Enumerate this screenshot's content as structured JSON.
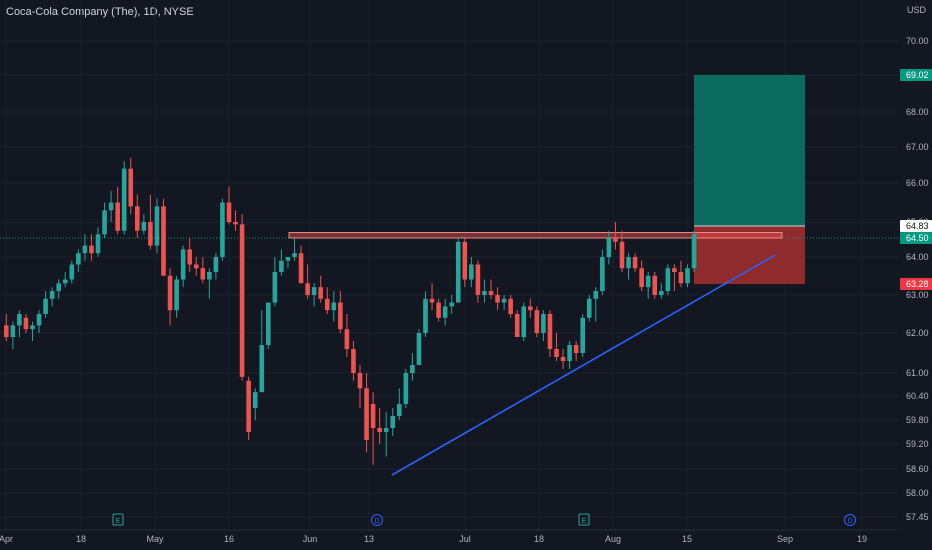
{
  "chart_data": {
    "type": "candlestick",
    "title": "Coca-Cola Company (The), 1D, NYSE",
    "currency": "USD",
    "colors": {
      "up": "#26a69a",
      "down": "#ef5350",
      "background": "#131722",
      "grid": "#1e222d",
      "trendline": "#2962ff"
    },
    "y_ticks": [
      70.0,
      69.02,
      68.0,
      67.0,
      66.0,
      65.0,
      64.83,
      64.5,
      64.0,
      63.28,
      63.0,
      62.0,
      61.0,
      60.4,
      59.8,
      59.2,
      58.6,
      58.0,
      57.45
    ],
    "y_labels": [
      "70.00",
      "69.02",
      "68.00",
      "67.00",
      "66.00",
      "65.00",
      "64.83",
      "64.50",
      "64.00",
      "63.28",
      "63.00",
      "62.00",
      "61.00",
      "60.40",
      "59.80",
      "59.20",
      "58.60",
      "58.00",
      "57.45"
    ],
    "x_ticks": [
      {
        "label": "Apr"
      },
      {
        "label": "18"
      },
      {
        "label": "May"
      },
      {
        "label": "16"
      },
      {
        "label": "Jun"
      },
      {
        "label": "13"
      },
      {
        "label": "Jul"
      },
      {
        "label": "18"
      },
      {
        "label": "Aug"
      },
      {
        "label": "15"
      },
      {
        "label": "Sep"
      },
      {
        "label": "19"
      }
    ],
    "price_badges": [
      {
        "value": "69.02",
        "color": "#089981"
      },
      {
        "value": "64.83",
        "color": "#ffffff"
      },
      {
        "value": "64.50",
        "color": "#089981"
      },
      {
        "value": "63.28",
        "color": "#f23645"
      }
    ],
    "event_markers": [
      {
        "label": "E"
      },
      {
        "label": "D"
      },
      {
        "label": "E"
      },
      {
        "label": "D"
      }
    ],
    "position": {
      "entry": 64.83,
      "target": 69.02,
      "stop": 63.28
    },
    "resistance_zone": [
      64.5,
      64.65
    ],
    "trendline": {
      "from": 58.45,
      "to": 64.05
    },
    "candles": [
      [
        62.2,
        62.5,
        61.8,
        61.9
      ],
      [
        61.9,
        62.3,
        61.6,
        62.2
      ],
      [
        62.2,
        62.6,
        61.9,
        62.5
      ],
      [
        62.4,
        62.5,
        62.0,
        62.1
      ],
      [
        62.1,
        62.3,
        61.8,
        62.2
      ],
      [
        62.2,
        62.6,
        62.0,
        62.5
      ],
      [
        62.5,
        63.1,
        62.4,
        62.9
      ],
      [
        62.9,
        63.2,
        62.7,
        63.1
      ],
      [
        63.1,
        63.4,
        62.9,
        63.3
      ],
      [
        63.3,
        63.6,
        63.2,
        63.4
      ],
      [
        63.4,
        63.9,
        63.3,
        63.8
      ],
      [
        63.8,
        64.2,
        63.6,
        64.1
      ],
      [
        64.1,
        64.6,
        63.9,
        64.3
      ],
      [
        64.3,
        64.6,
        63.9,
        64.1
      ],
      [
        64.1,
        64.8,
        64.0,
        64.6
      ],
      [
        64.6,
        65.5,
        64.5,
        65.3
      ],
      [
        65.3,
        65.8,
        65.0,
        65.5
      ],
      [
        65.5,
        65.9,
        64.6,
        64.7
      ],
      [
        64.7,
        66.6,
        64.6,
        66.4
      ],
      [
        66.4,
        66.7,
        65.2,
        65.4
      ],
      [
        65.4,
        65.7,
        64.5,
        64.7
      ],
      [
        64.7,
        65.2,
        64.6,
        65.0
      ],
      [
        65.0,
        65.7,
        64.2,
        64.3
      ],
      [
        64.3,
        65.6,
        64.1,
        65.4
      ],
      [
        65.4,
        65.6,
        63.5,
        63.5
      ],
      [
        63.5,
        63.7,
        62.2,
        62.6
      ],
      [
        62.6,
        63.5,
        62.4,
        63.4
      ],
      [
        63.4,
        64.3,
        63.2,
        64.2
      ],
      [
        64.2,
        64.5,
        63.6,
        63.8
      ],
      [
        63.8,
        64.0,
        63.5,
        63.7
      ],
      [
        63.7,
        64.0,
        63.3,
        63.4
      ],
      [
        63.4,
        63.7,
        62.9,
        63.6
      ],
      [
        63.6,
        64.1,
        63.4,
        64.0
      ],
      [
        64.0,
        65.6,
        63.9,
        65.5
      ],
      [
        65.5,
        65.9,
        64.9,
        65.0
      ],
      [
        65.0,
        65.3,
        64.7,
        64.9
      ],
      [
        64.9,
        65.2,
        60.8,
        60.9
      ],
      [
        60.8,
        60.9,
        59.3,
        59.5
      ],
      [
        60.1,
        60.6,
        59.8,
        60.5
      ],
      [
        60.5,
        62.6,
        60.5,
        61.7
      ],
      [
        61.7,
        62.8,
        61.6,
        62.8
      ],
      [
        62.8,
        64.0,
        62.7,
        63.6
      ],
      [
        63.6,
        64.2,
        63.5,
        63.9
      ],
      [
        63.9,
        64.0,
        63.7,
        64.0
      ],
      [
        64.0,
        64.5,
        63.9,
        64.1
      ],
      [
        64.1,
        64.3,
        63.3,
        63.3
      ],
      [
        63.3,
        63.8,
        62.9,
        63.0
      ],
      [
        63.0,
        63.3,
        62.7,
        63.2
      ],
      [
        63.2,
        63.5,
        62.8,
        62.9
      ],
      [
        62.9,
        63.2,
        62.5,
        62.6
      ],
      [
        62.6,
        63.1,
        62.3,
        62.8
      ],
      [
        62.8,
        63.1,
        62.0,
        62.1
      ],
      [
        62.1,
        62.5,
        61.4,
        61.6
      ],
      [
        61.6,
        61.8,
        60.8,
        61.0
      ],
      [
        61.0,
        61.2,
        60.1,
        60.6
      ],
      [
        60.6,
        61.0,
        59.0,
        59.3
      ],
      [
        60.2,
        60.5,
        58.7,
        59.6
      ],
      [
        59.6,
        60.1,
        59.2,
        59.5
      ],
      [
        59.5,
        60.0,
        58.9,
        59.6
      ],
      [
        59.6,
        60.1,
        59.4,
        59.9
      ],
      [
        59.9,
        60.6,
        59.8,
        60.2
      ],
      [
        60.2,
        61.1,
        60.1,
        61.0
      ],
      [
        61.0,
        61.5,
        60.8,
        61.2
      ],
      [
        61.2,
        62.1,
        61.2,
        62.0
      ],
      [
        62.0,
        63.1,
        61.9,
        62.9
      ],
      [
        62.9,
        63.3,
        62.6,
        62.8
      ],
      [
        62.8,
        62.9,
        62.3,
        62.4
      ],
      [
        62.4,
        62.9,
        62.2,
        62.7
      ],
      [
        62.7,
        63.0,
        62.5,
        62.8
      ],
      [
        62.8,
        64.5,
        62.8,
        64.4
      ],
      [
        64.4,
        64.5,
        63.2,
        63.4
      ],
      [
        63.4,
        64.0,
        63.2,
        63.8
      ],
      [
        63.8,
        63.9,
        62.8,
        63.0
      ],
      [
        63.0,
        63.4,
        62.8,
        63.1
      ],
      [
        63.1,
        63.4,
        62.9,
        63.0
      ],
      [
        63.0,
        63.2,
        62.6,
        62.8
      ],
      [
        62.8,
        63.0,
        62.6,
        62.9
      ],
      [
        62.9,
        63.0,
        62.4,
        62.5
      ],
      [
        62.5,
        62.6,
        61.9,
        61.9
      ],
      [
        61.9,
        62.8,
        61.8,
        62.7
      ],
      [
        62.7,
        62.9,
        62.4,
        62.6
      ],
      [
        62.6,
        62.7,
        61.9,
        62.0
      ],
      [
        62.0,
        62.6,
        61.8,
        62.5
      ],
      [
        62.5,
        62.6,
        61.4,
        61.6
      ],
      [
        61.6,
        62.0,
        61.3,
        61.4
      ],
      [
        61.4,
        61.6,
        61.1,
        61.3
      ],
      [
        61.3,
        61.8,
        61.1,
        61.7
      ],
      [
        61.7,
        61.8,
        61.3,
        61.5
      ],
      [
        61.5,
        62.5,
        61.4,
        62.4
      ],
      [
        62.4,
        63.0,
        62.3,
        62.9
      ],
      [
        62.9,
        63.2,
        62.3,
        63.1
      ],
      [
        63.1,
        64.2,
        63.0,
        64.0
      ],
      [
        64.0,
        64.7,
        63.8,
        64.5
      ],
      [
        64.5,
        65.0,
        64.2,
        64.4
      ],
      [
        64.4,
        64.7,
        63.6,
        63.7
      ],
      [
        63.7,
        64.1,
        63.4,
        64.0
      ],
      [
        64.0,
        64.1,
        63.6,
        63.7
      ],
      [
        63.7,
        63.9,
        63.1,
        63.2
      ],
      [
        63.2,
        63.6,
        62.9,
        63.5
      ],
      [
        63.5,
        63.6,
        62.9,
        63.0
      ],
      [
        63.0,
        63.3,
        62.9,
        63.1
      ],
      [
        63.1,
        63.8,
        63.0,
        63.7
      ],
      [
        63.7,
        63.8,
        63.1,
        63.6
      ],
      [
        63.6,
        63.9,
        63.2,
        63.3
      ],
      [
        63.3,
        63.8,
        63.2,
        63.7
      ],
      [
        63.7,
        64.7,
        63.6,
        64.6
      ]
    ]
  }
}
